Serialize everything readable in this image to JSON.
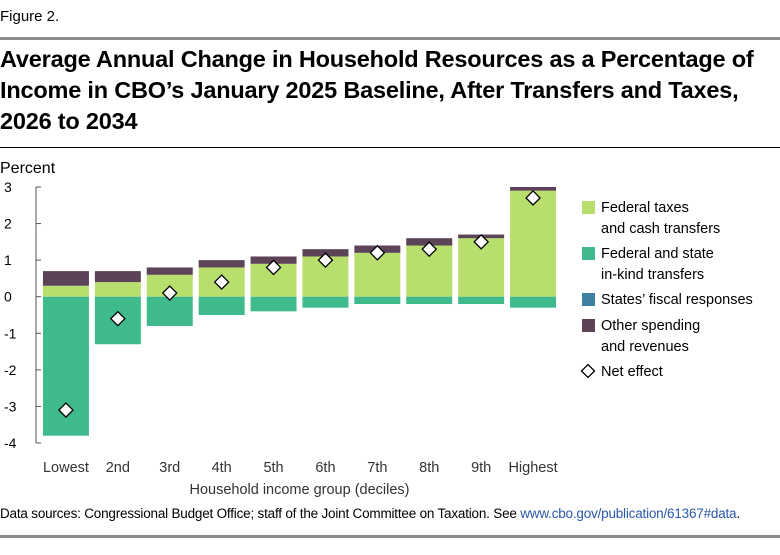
{
  "figure_label": "Figure 2.",
  "title": "Average Annual Change in Household Resources as a Percentage of Income in CBO’s January 2025 Baseline, After Transfers and Taxes, 2026 to 2034",
  "source_prefix": "Data sources: Congressional Budget Office; staff of the Joint Committee on Taxation. See ",
  "source_link": "www.cbo.gov/publication/61367#data",
  "source_suffix": ".",
  "colors": {
    "federal_taxes": "#b8df6e",
    "inkind": "#3fba8d",
    "states": "#3f7f9f",
    "other": "#5c4358",
    "net_effect_fill": "#ffffff",
    "axis": "#555555"
  },
  "chart_data": {
    "type": "bar",
    "stacked": true,
    "ylabel": "Percent",
    "xlabel": "Household income group (deciles)",
    "ylim": [
      -4,
      3
    ],
    "yticks": [
      3,
      2,
      1,
      0,
      -1,
      -2,
      -3,
      -4
    ],
    "categories": [
      "Lowest",
      "2nd",
      "3rd",
      "4th",
      "5th",
      "6th",
      "7th",
      "8th",
      "9th",
      "Highest"
    ],
    "series": [
      {
        "name": "Federal taxes and cash transfers",
        "legend_lines": [
          "Federal taxes",
          "and cash transfers"
        ],
        "color_key": "federal_taxes",
        "values": [
          0.3,
          0.4,
          0.6,
          0.8,
          0.9,
          1.1,
          1.2,
          1.4,
          1.6,
          2.9
        ]
      },
      {
        "name": "Federal and state in-kind transfers",
        "legend_lines": [
          "Federal and state",
          "in-kind transfers"
        ],
        "color_key": "inkind",
        "values": [
          -3.8,
          -1.3,
          -0.8,
          -0.5,
          -0.4,
          -0.3,
          -0.2,
          -0.2,
          -0.2,
          -0.3
        ]
      },
      {
        "name": "States’ fiscal responses",
        "legend_lines": [
          "States’ fiscal responses"
        ],
        "color_key": "states",
        "values": [
          0,
          0,
          0,
          0,
          0,
          0,
          0,
          0,
          0,
          0
        ]
      },
      {
        "name": "Other spending and revenues",
        "legend_lines": [
          "Other spending",
          "and revenues"
        ],
        "color_key": "other",
        "values": [
          0.4,
          0.3,
          0.2,
          0.2,
          0.2,
          0.2,
          0.2,
          0.2,
          0.1,
          0.1
        ]
      }
    ],
    "net_effect": {
      "name": "Net effect",
      "values": [
        -3.1,
        -0.6,
        0.1,
        0.4,
        0.8,
        1.0,
        1.2,
        1.3,
        1.5,
        2.7
      ]
    },
    "legend_position": "right",
    "grid": false
  }
}
